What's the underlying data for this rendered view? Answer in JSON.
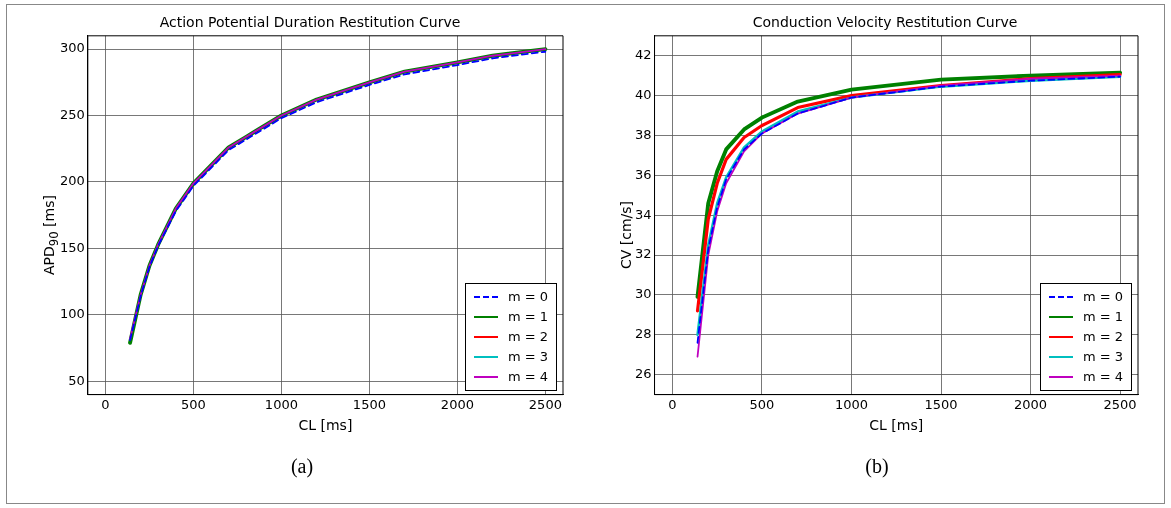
{
  "chart_data": [
    {
      "type": "line",
      "title": "Action Potential Duration Restitution Curve",
      "xlabel": "CL [ms]",
      "ylabel": "APD$_{90}$ [ms]",
      "x": [
        140,
        200,
        250,
        300,
        400,
        500,
        700,
        800,
        1000,
        1200,
        1500,
        1700,
        2000,
        2200,
        2500
      ],
      "series": [
        {
          "name": "m = 0",
          "color": "#0000ff",
          "line_style": "dashed",
          "values": [
            81,
            114,
            136,
            152,
            178,
            197,
            224,
            232,
            248,
            260,
            273,
            281,
            288,
            293,
            298
          ]
        },
        {
          "name": "m = 1",
          "color": "#008000",
          "values": [
            79,
            115,
            137,
            153,
            180,
            199,
            226,
            234,
            250,
            262,
            275,
            283,
            290,
            295,
            300
          ]
        },
        {
          "name": "m = 2",
          "color": "#ff0000",
          "values": [
            null,
            null,
            null,
            null,
            null,
            null,
            null,
            null,
            null,
            null,
            null,
            null,
            null,
            null,
            null
          ]
        },
        {
          "name": "m = 3",
          "color": "#00bfbf",
          "values": [
            null,
            null,
            null,
            null,
            null,
            null,
            null,
            null,
            null,
            null,
            null,
            null,
            null,
            null,
            null
          ]
        },
        {
          "name": "m = 4",
          "color": "#bf00bf",
          "values": [
            82,
            115,
            137,
            153,
            180,
            199,
            226,
            234,
            250,
            262,
            275,
            283,
            290,
            295,
            300
          ]
        }
      ],
      "xlim": [
        -100,
        2600
      ],
      "xticks": [
        0,
        500,
        1000,
        1500,
        2000,
        2500
      ],
      "ylim": [
        40,
        310
      ],
      "yticks": [
        50,
        100,
        150,
        200,
        250,
        300
      ],
      "grid": true,
      "legend": "bottom right",
      "marker": "none",
      "annotations": [
        "(a)"
      ]
    },
    {
      "type": "line",
      "title": "Conduction Velocity Restitution Curve",
      "xlabel": "CL [ms]",
      "ylabel": "CV [cm/s]",
      "x": [
        140,
        200,
        250,
        300,
        400,
        500,
        700,
        1000,
        1500,
        2000,
        2500
      ],
      "series": [
        {
          "name": "m = 0",
          "color": "#0000ff",
          "line_style": "dashed",
          "values": [
            27.6,
            32.3,
            34.4,
            35.8,
            37.3,
            38.1,
            39.1,
            39.9,
            40.45,
            40.75,
            40.95
          ]
        },
        {
          "name": "m = 1",
          "color": "#008000",
          "values": [
            29.9,
            34.6,
            36.2,
            37.3,
            38.3,
            38.9,
            39.7,
            40.3,
            40.8,
            41.0,
            41.15
          ]
        },
        {
          "name": "m = 2",
          "color": "#ff0000",
          "values": [
            29.2,
            33.8,
            35.6,
            36.8,
            37.9,
            38.5,
            39.4,
            40.0,
            40.5,
            40.85,
            41.05
          ]
        },
        {
          "name": "m = 3",
          "color": "#00bfbf",
          "values": [
            28.0,
            32.5,
            34.6,
            35.9,
            37.4,
            38.2,
            39.2,
            39.9,
            40.45,
            40.75,
            40.95
          ]
        },
        {
          "name": "m = 4",
          "color": "#bf00bf",
          "values": [
            26.9,
            32.0,
            34.2,
            35.6,
            37.2,
            38.1,
            39.1,
            39.9,
            40.5,
            40.85,
            41.0
          ]
        }
      ],
      "xlim": [
        -100,
        2600
      ],
      "xticks": [
        0,
        500,
        1000,
        1500,
        2000,
        2500
      ],
      "ylim": [
        25,
        43
      ],
      "yticks": [
        26,
        28,
        30,
        32,
        34,
        36,
        38,
        40,
        42
      ],
      "grid": true,
      "legend": "bottom right",
      "marker": "none",
      "annotations": [
        "(b)"
      ]
    }
  ]
}
